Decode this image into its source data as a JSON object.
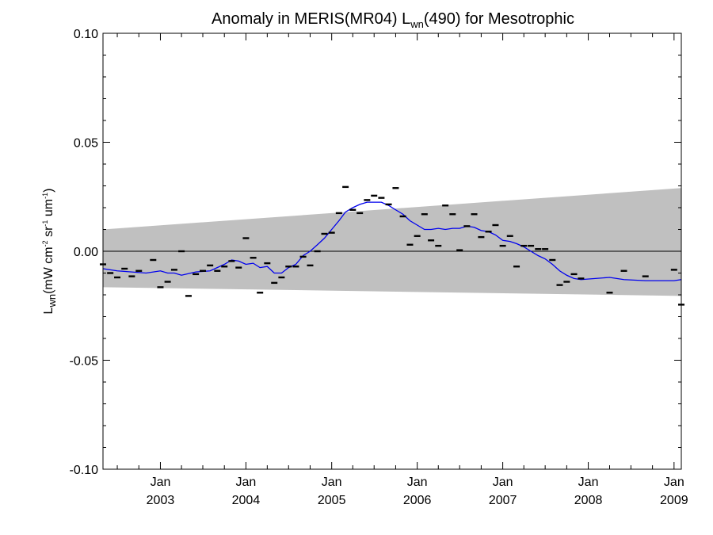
{
  "chart_data": {
    "type": "line",
    "title": {
      "prefix": "Anomaly in MERIS(MR04) L",
      "subscript": "wn",
      "suffix": "(490) for Mesotrophic"
    },
    "ylabel": {
      "symbol": "L",
      "symbol_sub": "wn",
      "units_open": "(mW cm",
      "cm_exp": "-2",
      "sr": " sr",
      "sr_exp": "-1",
      "um": " um",
      "um_exp": "-1",
      "units_close": ")"
    },
    "xlabel": "",
    "x_range": [
      "2002-05-01",
      "2009-02-01"
    ],
    "ylim": [
      -0.1,
      0.1
    ],
    "y_ticks": [
      "0.10",
      "0.05",
      "0.00",
      "-0.05",
      "-0.10"
    ],
    "x_ticks": [
      {
        "date": "2003-01-01",
        "month": "Jan",
        "year": "2003"
      },
      {
        "date": "2004-01-01",
        "month": "Jan",
        "year": "2004"
      },
      {
        "date": "2005-01-01",
        "month": "Jan",
        "year": "2005"
      },
      {
        "date": "2006-01-01",
        "month": "Jan",
        "year": "2006"
      },
      {
        "date": "2007-01-01",
        "month": "Jan",
        "year": "2007"
      },
      {
        "date": "2008-01-01",
        "month": "Jan",
        "year": "2008"
      },
      {
        "date": "2009-01-01",
        "month": "Jan",
        "year": "2009"
      }
    ],
    "zero_line": 0.0,
    "uncertainty_band": {
      "color": "#c0c0c0",
      "upper": [
        {
          "x": "2002-05-01",
          "y": 0.01
        },
        {
          "x": "2009-02-01",
          "y": 0.029
        }
      ],
      "lower": [
        {
          "x": "2002-05-01",
          "y": -0.0165
        },
        {
          "x": "2009-02-01",
          "y": -0.0205
        }
      ]
    },
    "monthly_anomaly": {
      "color": "#000000",
      "points": [
        {
          "x": "2002-05-01",
          "y": -0.006
        },
        {
          "x": "2002-06-01",
          "y": -0.01
        },
        {
          "x": "2002-07-01",
          "y": -0.012
        },
        {
          "x": "2002-08-01",
          "y": -0.008
        },
        {
          "x": "2002-09-01",
          "y": -0.0115
        },
        {
          "x": "2002-10-01",
          "y": -0.009
        },
        {
          "x": "2002-12-01",
          "y": -0.004
        },
        {
          "x": "2003-01-01",
          "y": -0.0165
        },
        {
          "x": "2003-02-01",
          "y": -0.014
        },
        {
          "x": "2003-03-01",
          "y": -0.0085
        },
        {
          "x": "2003-04-01",
          "y": 0.0
        },
        {
          "x": "2003-05-01",
          "y": -0.0205
        },
        {
          "x": "2003-06-01",
          "y": -0.0105
        },
        {
          "x": "2003-07-01",
          "y": -0.009
        },
        {
          "x": "2003-08-01",
          "y": -0.0065
        },
        {
          "x": "2003-09-01",
          "y": -0.009
        },
        {
          "x": "2003-10-01",
          "y": -0.007
        },
        {
          "x": "2003-11-01",
          "y": -0.0045
        },
        {
          "x": "2003-12-01",
          "y": -0.0075
        },
        {
          "x": "2004-01-01",
          "y": 0.006
        },
        {
          "x": "2004-02-01",
          "y": -0.003
        },
        {
          "x": "2004-03-01",
          "y": -0.019
        },
        {
          "x": "2004-04-01",
          "y": -0.0055
        },
        {
          "x": "2004-05-01",
          "y": -0.0145
        },
        {
          "x": "2004-06-01",
          "y": -0.012
        },
        {
          "x": "2004-07-01",
          "y": -0.007
        },
        {
          "x": "2004-08-01",
          "y": -0.007
        },
        {
          "x": "2004-09-01",
          "y": -0.0025
        },
        {
          "x": "2004-10-01",
          "y": -0.0065
        },
        {
          "x": "2004-11-01",
          "y": 0.0
        },
        {
          "x": "2004-12-01",
          "y": 0.008
        },
        {
          "x": "2005-01-01",
          "y": 0.0085
        },
        {
          "x": "2005-02-01",
          "y": 0.0175
        },
        {
          "x": "2005-03-01",
          "y": 0.0295
        },
        {
          "x": "2005-04-01",
          "y": 0.019
        },
        {
          "x": "2005-05-01",
          "y": 0.0175
        },
        {
          "x": "2005-06-01",
          "y": 0.0235
        },
        {
          "x": "2005-07-01",
          "y": 0.0255
        },
        {
          "x": "2005-08-01",
          "y": 0.0245
        },
        {
          "x": "2005-09-01",
          "y": 0.0215
        },
        {
          "x": "2005-10-01",
          "y": 0.029
        },
        {
          "x": "2005-11-01",
          "y": 0.016
        },
        {
          "x": "2005-12-01",
          "y": 0.003
        },
        {
          "x": "2006-01-01",
          "y": 0.007
        },
        {
          "x": "2006-02-01",
          "y": 0.017
        },
        {
          "x": "2006-03-01",
          "y": 0.005
        },
        {
          "x": "2006-04-01",
          "y": 0.0025
        },
        {
          "x": "2006-05-01",
          "y": 0.021
        },
        {
          "x": "2006-06-01",
          "y": 0.017
        },
        {
          "x": "2006-07-01",
          "y": 0.0005
        },
        {
          "x": "2006-08-01",
          "y": 0.0115
        },
        {
          "x": "2006-09-01",
          "y": 0.017
        },
        {
          "x": "2006-10-01",
          "y": 0.0065
        },
        {
          "x": "2006-11-01",
          "y": 0.009
        },
        {
          "x": "2006-12-01",
          "y": 0.012
        },
        {
          "x": "2007-01-01",
          "y": 0.0025
        },
        {
          "x": "2007-02-01",
          "y": 0.007
        },
        {
          "x": "2007-03-01",
          "y": -0.007
        },
        {
          "x": "2007-04-01",
          "y": 0.0025
        },
        {
          "x": "2007-05-01",
          "y": 0.0025
        },
        {
          "x": "2007-06-01",
          "y": 0.001
        },
        {
          "x": "2007-07-01",
          "y": 0.001
        },
        {
          "x": "2007-08-01",
          "y": -0.004
        },
        {
          "x": "2007-09-01",
          "y": -0.0155
        },
        {
          "x": "2007-10-01",
          "y": -0.014
        },
        {
          "x": "2007-11-01",
          "y": -0.0105
        },
        {
          "x": "2007-12-01",
          "y": -0.0125
        },
        {
          "x": "2008-04-01",
          "y": -0.019
        },
        {
          "x": "2008-06-01",
          "y": -0.009
        },
        {
          "x": "2008-09-01",
          "y": -0.0115
        },
        {
          "x": "2009-01-01",
          "y": -0.0085
        },
        {
          "x": "2009-02-01",
          "y": -0.0245
        }
      ]
    },
    "smoothed_series": {
      "color": "#0000ee",
      "points": [
        {
          "x": "2002-05-01",
          "y": -0.008
        },
        {
          "x": "2002-07-01",
          "y": -0.009
        },
        {
          "x": "2002-09-01",
          "y": -0.0095
        },
        {
          "x": "2002-11-01",
          "y": -0.01
        },
        {
          "x": "2003-01-01",
          "y": -0.009
        },
        {
          "x": "2003-02-01",
          "y": -0.01
        },
        {
          "x": "2003-03-01",
          "y": -0.01
        },
        {
          "x": "2003-04-01",
          "y": -0.011
        },
        {
          "x": "2003-06-01",
          "y": -0.0095
        },
        {
          "x": "2003-08-01",
          "y": -0.009
        },
        {
          "x": "2003-10-01",
          "y": -0.006
        },
        {
          "x": "2003-11-01",
          "y": -0.004
        },
        {
          "x": "2003-12-01",
          "y": -0.0045
        },
        {
          "x": "2004-01-01",
          "y": -0.006
        },
        {
          "x": "2004-02-01",
          "y": -0.0055
        },
        {
          "x": "2004-03-01",
          "y": -0.0075
        },
        {
          "x": "2004-04-01",
          "y": -0.007
        },
        {
          "x": "2004-05-01",
          "y": -0.01
        },
        {
          "x": "2004-06-01",
          "y": -0.01
        },
        {
          "x": "2004-07-01",
          "y": -0.0075
        },
        {
          "x": "2004-08-01",
          "y": -0.006
        },
        {
          "x": "2004-09-01",
          "y": -0.002
        },
        {
          "x": "2004-10-01",
          "y": 0.0
        },
        {
          "x": "2004-11-01",
          "y": 0.003
        },
        {
          "x": "2004-12-01",
          "y": 0.006
        },
        {
          "x": "2005-01-01",
          "y": 0.01
        },
        {
          "x": "2005-02-01",
          "y": 0.014
        },
        {
          "x": "2005-03-01",
          "y": 0.018
        },
        {
          "x": "2005-04-01",
          "y": 0.02
        },
        {
          "x": "2005-05-01",
          "y": 0.0215
        },
        {
          "x": "2005-06-01",
          "y": 0.0225
        },
        {
          "x": "2005-07-01",
          "y": 0.0225
        },
        {
          "x": "2005-08-01",
          "y": 0.0225
        },
        {
          "x": "2005-09-01",
          "y": 0.021
        },
        {
          "x": "2005-10-01",
          "y": 0.019
        },
        {
          "x": "2005-11-01",
          "y": 0.017
        },
        {
          "x": "2005-12-01",
          "y": 0.014
        },
        {
          "x": "2006-01-01",
          "y": 0.012
        },
        {
          "x": "2006-02-01",
          "y": 0.01
        },
        {
          "x": "2006-03-01",
          "y": 0.01
        },
        {
          "x": "2006-04-01",
          "y": 0.0105
        },
        {
          "x": "2006-05-01",
          "y": 0.01
        },
        {
          "x": "2006-06-01",
          "y": 0.0105
        },
        {
          "x": "2006-07-01",
          "y": 0.0105
        },
        {
          "x": "2006-08-01",
          "y": 0.0115
        },
        {
          "x": "2006-09-01",
          "y": 0.011
        },
        {
          "x": "2006-10-01",
          "y": 0.0095
        },
        {
          "x": "2006-11-01",
          "y": 0.009
        },
        {
          "x": "2006-12-01",
          "y": 0.0075
        },
        {
          "x": "2007-01-01",
          "y": 0.005
        },
        {
          "x": "2007-02-01",
          "y": 0.0045
        },
        {
          "x": "2007-03-01",
          "y": 0.0035
        },
        {
          "x": "2007-04-01",
          "y": 0.002
        },
        {
          "x": "2007-05-01",
          "y": 0.0
        },
        {
          "x": "2007-06-01",
          "y": -0.002
        },
        {
          "x": "2007-07-01",
          "y": -0.0035
        },
        {
          "x": "2007-08-01",
          "y": -0.006
        },
        {
          "x": "2007-09-01",
          "y": -0.009
        },
        {
          "x": "2007-10-01",
          "y": -0.011
        },
        {
          "x": "2007-11-01",
          "y": -0.0125
        },
        {
          "x": "2007-12-01",
          "y": -0.013
        },
        {
          "x": "2008-04-01",
          "y": -0.012
        },
        {
          "x": "2008-06-01",
          "y": -0.013
        },
        {
          "x": "2008-09-01",
          "y": -0.0135
        },
        {
          "x": "2009-01-01",
          "y": -0.0135
        },
        {
          "x": "2009-02-01",
          "y": -0.013
        }
      ]
    }
  }
}
